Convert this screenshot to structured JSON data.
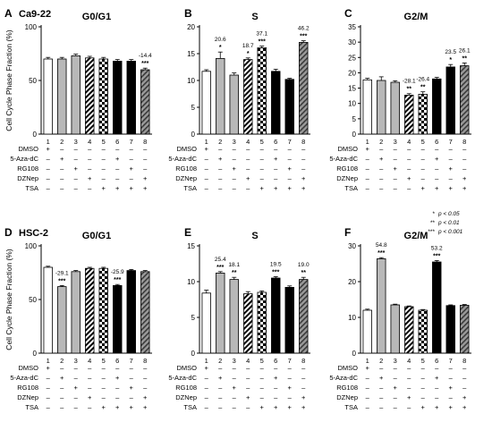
{
  "legend": [
    {
      "stars": "*",
      "text": "p < 0.05"
    },
    {
      "stars": "**",
      "text": "p < 0.01"
    },
    {
      "stars": "***",
      "text": "p < 0.001"
    }
  ],
  "treatment_rows": [
    "DMSO",
    "5-Aza-dC",
    "RG108",
    "DZNep",
    "TSA"
  ],
  "treatment_matrix": [
    [
      "+",
      "-",
      "-",
      "-",
      "-",
      "-",
      "-",
      "-"
    ],
    [
      "-",
      "+",
      "-",
      "-",
      "-",
      "+",
      "-",
      "-"
    ],
    [
      "-",
      "-",
      "+",
      "-",
      "-",
      "-",
      "+",
      "-"
    ],
    [
      "-",
      "-",
      "-",
      "+",
      "-",
      "-",
      "-",
      "+"
    ],
    [
      "-",
      "-",
      "-",
      "-",
      "+",
      "+",
      "+",
      "+"
    ]
  ],
  "chart_data": [
    {
      "panel": "A",
      "cell_line": "Ca9-22",
      "title": "G0/G1",
      "type": "bar",
      "ylabel": "Cell Cycle Phase Fraction (%)",
      "ylim": [
        0,
        100
      ],
      "yticks": [
        0,
        50,
        100
      ],
      "categories": [
        "1",
        "2",
        "3",
        "4",
        "5",
        "6",
        "7",
        "8"
      ],
      "values": [
        70,
        70,
        73,
        71,
        70,
        68,
        68,
        60
      ],
      "errors": [
        1.5,
        1.5,
        1.5,
        1.5,
        1.5,
        1.5,
        1.5,
        1.5
      ],
      "annotations": [
        null,
        null,
        null,
        null,
        null,
        null,
        null,
        {
          "pct": "-14.4",
          "stars": "***"
        }
      ]
    },
    {
      "panel": "B",
      "title": "S",
      "type": "bar",
      "ylim": [
        0,
        20
      ],
      "yticks": [
        0,
        5,
        10,
        15,
        20
      ],
      "categories": [
        "1",
        "2",
        "3",
        "4",
        "5",
        "6",
        "7",
        "8"
      ],
      "values": [
        11.7,
        14.1,
        11.0,
        13.9,
        16.1,
        11.7,
        10.2,
        17.1
      ],
      "errors": [
        0.3,
        1.2,
        0.4,
        0.3,
        0.3,
        0.4,
        0.2,
        0.3
      ],
      "annotations": [
        null,
        {
          "pct": "20.6",
          "stars": "*"
        },
        null,
        {
          "pct": "18.7",
          "stars": "*"
        },
        {
          "pct": "37.1",
          "stars": "***"
        },
        null,
        null,
        {
          "pct": "46.2",
          "stars": "***"
        }
      ]
    },
    {
      "panel": "C",
      "title": "G2/M",
      "type": "bar",
      "ylim": [
        0,
        35
      ],
      "yticks": [
        0,
        5,
        10,
        15,
        20,
        25,
        30,
        35
      ],
      "categories": [
        "1",
        "2",
        "3",
        "4",
        "5",
        "6",
        "7",
        "8"
      ],
      "values": [
        17.7,
        17.5,
        16.9,
        12.7,
        13.0,
        18.0,
        21.9,
        22.3
      ],
      "errors": [
        0.5,
        1.2,
        0.5,
        0.5,
        0.8,
        0.5,
        0.8,
        0.9
      ],
      "annotations": [
        null,
        null,
        null,
        {
          "pct": "-28.1",
          "stars": "**"
        },
        {
          "pct": "-26.4",
          "stars": "**"
        },
        null,
        {
          "pct": "23.5",
          "stars": "*"
        },
        {
          "pct": "26.1",
          "stars": "**"
        }
      ]
    },
    {
      "panel": "D",
      "cell_line": "HSC-2",
      "title": "G0/G1",
      "type": "bar",
      "ylabel": "Cell Cycle Phase Fraction (%)",
      "ylim": [
        0,
        100
      ],
      "yticks": [
        0,
        50,
        100
      ],
      "categories": [
        "1",
        "2",
        "3",
        "4",
        "5",
        "6",
        "7",
        "8"
      ],
      "values": [
        80,
        62,
        76,
        79,
        79,
        63,
        77,
        76
      ],
      "errors": [
        1,
        1,
        1,
        1,
        1,
        1,
        1,
        1
      ],
      "annotations": [
        null,
        {
          "pct": "-29.1",
          "stars": "***"
        },
        null,
        null,
        null,
        {
          "pct": "-25.9",
          "stars": "***"
        },
        null,
        null
      ]
    },
    {
      "panel": "E",
      "title": "S",
      "type": "bar",
      "ylim": [
        0,
        15
      ],
      "yticks": [
        0,
        5,
        10,
        15
      ],
      "categories": [
        "1",
        "2",
        "3",
        "4",
        "5",
        "6",
        "7",
        "8"
      ],
      "values": [
        8.4,
        11.2,
        10.3,
        8.3,
        8.5,
        10.5,
        9.2,
        10.3
      ],
      "errors": [
        0.4,
        0.2,
        0.3,
        0.3,
        0.2,
        0.2,
        0.2,
        0.3
      ],
      "annotations": [
        null,
        {
          "pct": "25.4",
          "stars": "***"
        },
        {
          "pct": "18.1",
          "stars": "**"
        },
        null,
        null,
        {
          "pct": "19.5",
          "stars": "***"
        },
        null,
        {
          "pct": "19.0",
          "stars": "**"
        }
      ]
    },
    {
      "panel": "F",
      "title": "G2/M",
      "type": "bar",
      "ylim": [
        0,
        30
      ],
      "yticks": [
        0,
        10,
        20,
        30
      ],
      "categories": [
        "1",
        "2",
        "3",
        "4",
        "5",
        "6",
        "7",
        "8"
      ],
      "values": [
        12.0,
        26.4,
        13.5,
        13.0,
        12.0,
        25.5,
        13.3,
        13.4
      ],
      "errors": [
        0.3,
        0.3,
        0.2,
        0.2,
        0.2,
        0.4,
        0.2,
        0.2
      ],
      "annotations": [
        null,
        {
          "pct": "54.8",
          "stars": "***"
        },
        null,
        null,
        null,
        {
          "pct": "53.2",
          "stars": "***"
        },
        null,
        null
      ]
    }
  ],
  "bar_fills": [
    "white",
    "#b8b8b8",
    "#b8b8b8",
    "diagonal-stripes",
    "checkerboard",
    "black",
    "black",
    "hatched-gray"
  ]
}
